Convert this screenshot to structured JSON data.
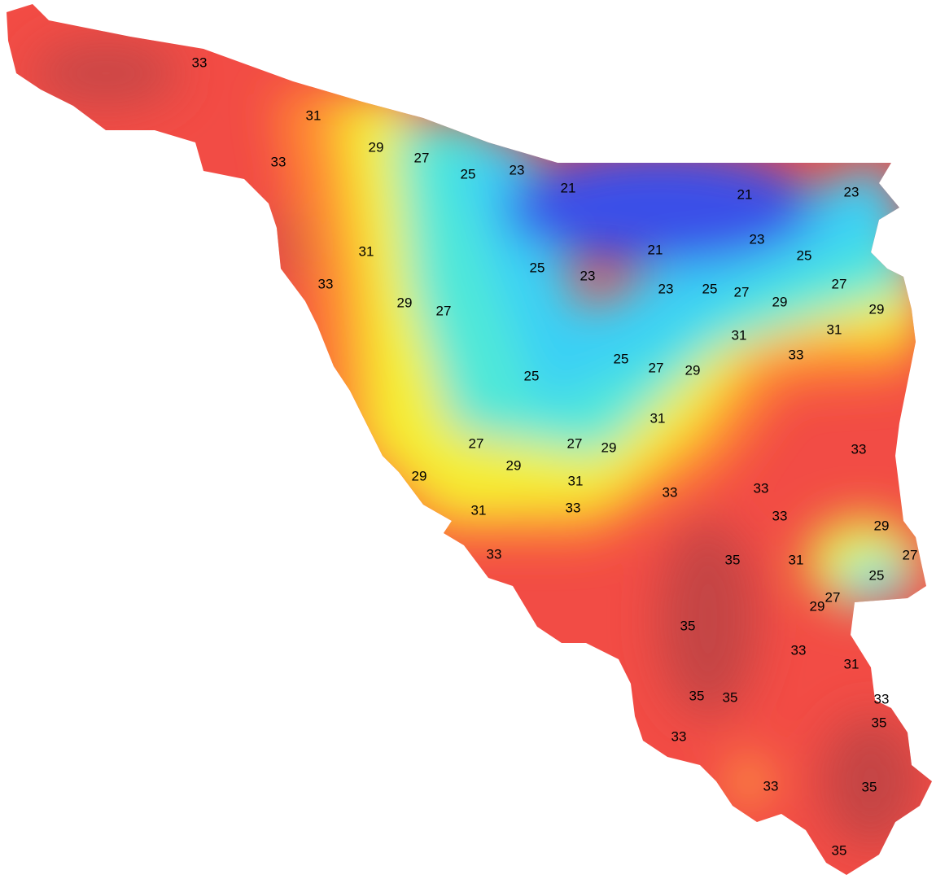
{
  "contour_labels": [
    "33",
    "31",
    "33",
    "29",
    "27",
    "25",
    "23",
    "21",
    "21",
    "23",
    "21",
    "23",
    "25",
    "25",
    "23",
    "31",
    "33",
    "29",
    "27",
    "23",
    "25",
    "27",
    "27",
    "29",
    "29",
    "31",
    "31",
    "33",
    "25",
    "25",
    "27",
    "29",
    "31",
    "27",
    "27",
    "29",
    "33",
    "29",
    "29",
    "31",
    "33",
    "33",
    "31",
    "33",
    "33",
    "29",
    "33",
    "35",
    "31",
    "27",
    "25",
    "27",
    "29",
    "35",
    "33",
    "31",
    "35",
    "35",
    "33",
    "35",
    "33",
    "33",
    "35",
    "35"
  ]
}
